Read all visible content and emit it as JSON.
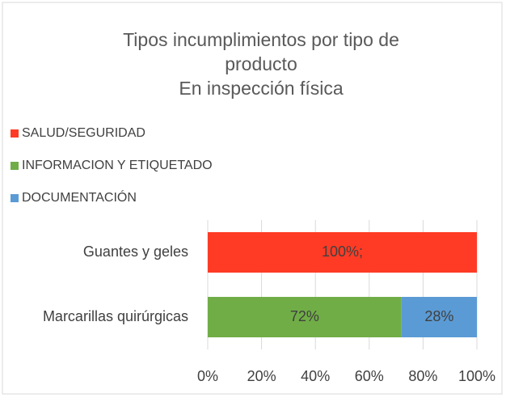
{
  "chart_data": {
    "type": "stacked_bar_horizontal",
    "title": "Tipos incumplimientos por tipo de producto",
    "subtitle": "En inspección física",
    "categories": [
      "Guantes y geles",
      "Marcarillas quirúrgicas"
    ],
    "series": [
      {
        "name": "SALUD/SEGURIDAD",
        "color": "#ff3b25",
        "values": [
          100,
          0
        ],
        "value_labels": [
          "100%;",
          null
        ]
      },
      {
        "name": "INFORMACION Y ETIQUETADO",
        "color": "#70ad47",
        "values": [
          0,
          72
        ],
        "value_labels": [
          null,
          "72%"
        ]
      },
      {
        "name": "DOCUMENTACIÓN",
        "color": "#5b9bd5",
        "values": [
          0,
          28
        ],
        "value_labels": [
          null,
          "28%"
        ]
      }
    ],
    "xlim": [
      0,
      100
    ],
    "xticks": [
      {
        "value": 0,
        "label": "0%"
      },
      {
        "value": 20,
        "label": "20%"
      },
      {
        "value": 40,
        "label": "40%"
      },
      {
        "value": 60,
        "label": "60%"
      },
      {
        "value": 80,
        "label": "80%"
      },
      {
        "value": 100,
        "label": "100%"
      }
    ],
    "grid": true,
    "legend": "top-left"
  }
}
